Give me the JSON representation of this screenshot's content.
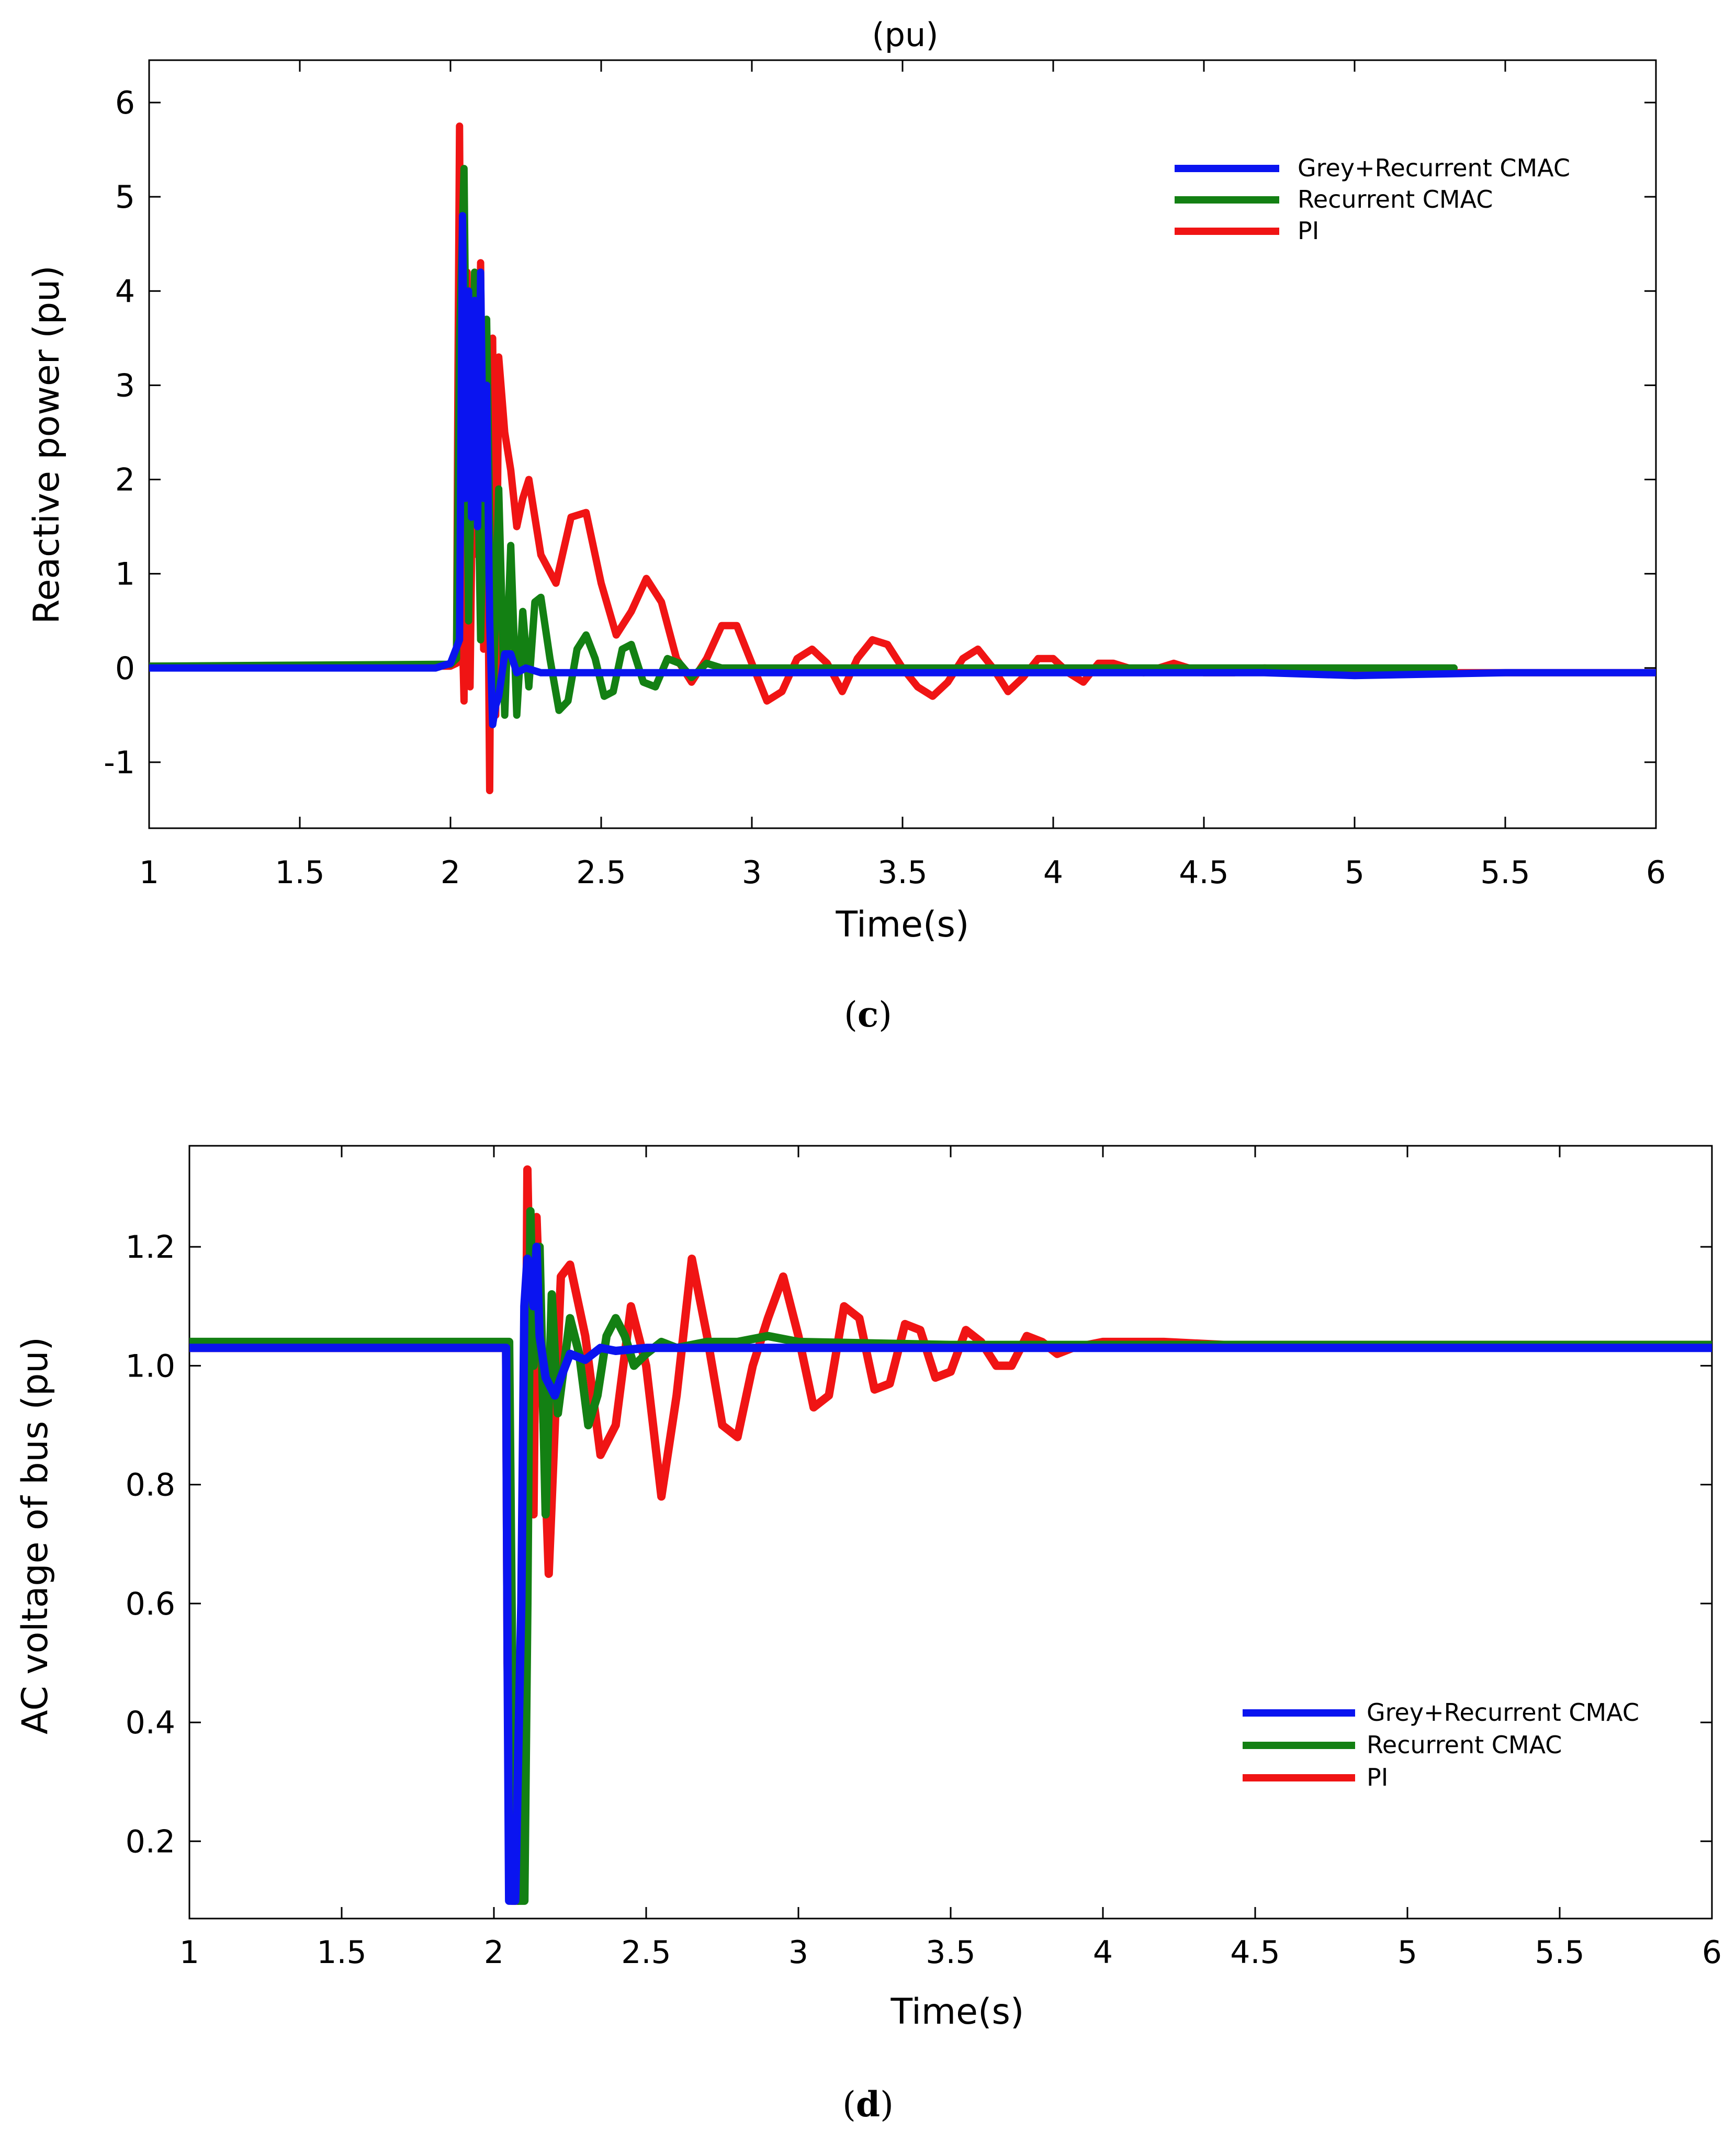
{
  "figure_caption_c": {
    "open": "(",
    "letter": "c",
    "close": ")"
  },
  "figure_caption_d": {
    "open": "(",
    "letter": "d",
    "close": ")"
  },
  "series_colors": {
    "grey_recurrent_cmac": "#0a14f0",
    "recurrent_cmac": "#138013",
    "pi": "#f01414"
  },
  "chart_data": [
    {
      "type": "line",
      "title": "(pu)",
      "xlabel": "Time(s)",
      "ylabel": "Reactive power (pu)",
      "xlim": [
        1,
        6
      ],
      "ylim": [
        -1.7,
        6.45
      ],
      "x_ticks": [
        "1",
        "1.5",
        "2",
        "2.5",
        "3",
        "3.5",
        "4",
        "4.5",
        "5",
        "5.5",
        "6"
      ],
      "y_ticks": [
        "6",
        "5",
        "4",
        "3",
        "2",
        "1",
        "0",
        "-1"
      ],
      "x_tick_values": [
        1,
        1.5,
        2,
        2.5,
        3,
        3.5,
        4,
        4.5,
        5,
        5.5,
        6
      ],
      "y_tick_values": [
        6,
        5,
        4,
        3,
        2,
        1,
        0,
        -1
      ],
      "legend_position": "top-right",
      "legend": [
        "Grey+Recurrent CMAC",
        "Recurrent CMAC",
        "PI"
      ],
      "series": [
        {
          "name": "PI",
          "color": "#f01414",
          "x": [
            1.0,
            1.5,
            2.0,
            2.02,
            2.025,
            2.03,
            2.04,
            2.045,
            2.055,
            2.065,
            2.08,
            2.09,
            2.1,
            2.11,
            2.12,
            2.13,
            2.14,
            2.15,
            2.16,
            2.18,
            2.2,
            2.22,
            2.24,
            2.26,
            2.3,
            2.35,
            2.4,
            2.45,
            2.5,
            2.55,
            2.6,
            2.65,
            2.7,
            2.75,
            2.8,
            2.85,
            2.9,
            2.95,
            3.0,
            3.05,
            3.1,
            3.15,
            3.2,
            3.25,
            3.3,
            3.35,
            3.4,
            3.45,
            3.5,
            3.55,
            3.6,
            3.65,
            3.7,
            3.75,
            3.8,
            3.85,
            3.9,
            3.95,
            4.0,
            4.05,
            4.1,
            4.15,
            4.2,
            4.3,
            4.4,
            4.5,
            4.6,
            4.7,
            5.0,
            5.5,
            6.0
          ],
          "values": [
            0.02,
            0.02,
            0.02,
            0.05,
            3.2,
            5.75,
            0.3,
            -0.35,
            4.2,
            -0.2,
            3.9,
            1.2,
            4.3,
            0.2,
            2.8,
            -1.3,
            3.5,
            -0.5,
            3.3,
            2.5,
            2.1,
            1.5,
            1.8,
            2.0,
            1.2,
            0.9,
            1.6,
            1.65,
            0.9,
            0.35,
            0.6,
            0.95,
            0.7,
            0.1,
            -0.15,
            0.1,
            0.45,
            0.45,
            0.05,
            -0.35,
            -0.25,
            0.1,
            0.2,
            0.05,
            -0.25,
            0.1,
            0.3,
            0.25,
            0.0,
            -0.2,
            -0.3,
            -0.15,
            0.1,
            0.2,
            0.0,
            -0.25,
            -0.1,
            0.1,
            0.1,
            -0.05,
            -0.15,
            0.05,
            0.05,
            -0.05,
            0.05,
            -0.05,
            -0.05,
            0.0,
            -0.05,
            -0.05,
            -0.05
          ]
        },
        {
          "name": "Recurrent CMAC",
          "color": "#138013",
          "x": [
            1.0,
            1.5,
            2.0,
            2.02,
            2.03,
            2.045,
            2.06,
            2.08,
            2.1,
            2.12,
            2.14,
            2.16,
            2.18,
            2.2,
            2.22,
            2.24,
            2.26,
            2.28,
            2.3,
            2.33,
            2.36,
            2.39,
            2.42,
            2.45,
            2.48,
            2.51,
            2.54,
            2.57,
            2.6,
            2.64,
            2.68,
            2.72,
            2.76,
            2.8,
            2.85,
            2.9,
            3.0,
            3.5,
            4.0,
            4.5,
            5.0,
            5.33
          ],
          "values": [
            0.02,
            0.03,
            0.04,
            0.1,
            3.5,
            5.3,
            0.5,
            4.2,
            0.3,
            3.7,
            -0.6,
            1.9,
            -0.5,
            1.3,
            -0.5,
            0.6,
            -0.2,
            0.7,
            0.75,
            0.1,
            -0.45,
            -0.35,
            0.2,
            0.35,
            0.1,
            -0.3,
            -0.25,
            0.2,
            0.25,
            -0.15,
            -0.2,
            0.1,
            0.05,
            -0.1,
            0.05,
            0.0,
            0.0,
            0.0,
            0.0,
            0.0,
            0.0,
            0.0
          ]
        },
        {
          "name": "Grey+Recurrent CMAC",
          "color": "#0a14f0",
          "x": [
            1.0,
            1.5,
            1.95,
            2.0,
            2.03,
            2.04,
            2.05,
            2.06,
            2.07,
            2.08,
            2.09,
            2.1,
            2.11,
            2.12,
            2.13,
            2.14,
            2.15,
            2.16,
            2.18,
            2.2,
            2.22,
            2.25,
            2.3,
            2.4,
            2.5,
            3.0,
            3.5,
            4.0,
            4.5,
            4.7,
            5.0,
            5.5,
            6.0
          ],
          "values": [
            0.0,
            0.0,
            0.0,
            0.05,
            0.3,
            4.8,
            1.8,
            4.0,
            1.6,
            3.9,
            1.5,
            4.2,
            1.8,
            3.0,
            0.5,
            -0.6,
            -0.4,
            -0.3,
            0.15,
            0.15,
            -0.05,
            0.0,
            -0.05,
            -0.05,
            -0.05,
            -0.05,
            -0.05,
            -0.05,
            -0.05,
            -0.05,
            -0.08,
            -0.05,
            -0.05
          ]
        }
      ]
    },
    {
      "type": "line",
      "title": "",
      "xlabel": "Time(s)",
      "ylabel": "AC voltage of bus (pu)",
      "xlim": [
        1,
        6
      ],
      "ylim": [
        0.07,
        1.37
      ],
      "x_ticks": [
        "1",
        "1.5",
        "2",
        "2.5",
        "3",
        "3.5",
        "4",
        "4.5",
        "5",
        "5.5",
        "6"
      ],
      "y_ticks": [
        "1.2",
        "1.0",
        "0.8",
        "0.6",
        "0.4",
        "0.2"
      ],
      "x_tick_values": [
        1,
        1.5,
        2,
        2.5,
        3,
        3.5,
        4,
        4.5,
        5,
        5.5,
        6
      ],
      "y_tick_values": [
        1.2,
        1.0,
        0.8,
        0.6,
        0.4,
        0.2
      ],
      "legend_position": "bottom-right",
      "legend": [
        "Grey+Recurrent CMAC",
        "Recurrent CMAC",
        "PI"
      ],
      "series": [
        {
          "name": "PI",
          "color": "#f01414",
          "x": [
            1.0,
            1.5,
            2.0,
            2.04,
            2.045,
            2.06,
            2.08,
            2.1,
            2.11,
            2.12,
            2.13,
            2.14,
            2.16,
            2.18,
            2.2,
            2.22,
            2.25,
            2.3,
            2.35,
            2.4,
            2.45,
            2.5,
            2.55,
            2.6,
            2.65,
            2.7,
            2.75,
            2.8,
            2.85,
            2.9,
            2.95,
            3.0,
            3.05,
            3.1,
            3.15,
            3.2,
            3.25,
            3.3,
            3.35,
            3.4,
            3.45,
            3.5,
            3.55,
            3.6,
            3.65,
            3.7,
            3.75,
            3.8,
            3.85,
            3.9,
            4.0,
            4.2,
            4.4,
            4.6,
            5.0,
            5.5,
            6.0
          ],
          "values": [
            1.03,
            1.03,
            1.03,
            1.03,
            0.5,
            0.1,
            0.1,
            0.5,
            1.33,
            1.05,
            0.75,
            1.25,
            0.95,
            0.65,
            0.9,
            1.15,
            1.17,
            1.05,
            0.85,
            0.9,
            1.1,
            1.0,
            0.78,
            0.95,
            1.18,
            1.05,
            0.9,
            0.88,
            1.0,
            1.08,
            1.15,
            1.05,
            0.93,
            0.95,
            1.1,
            1.08,
            0.96,
            0.97,
            1.07,
            1.06,
            0.98,
            0.99,
            1.06,
            1.04,
            1.0,
            1.0,
            1.05,
            1.04,
            1.02,
            1.03,
            1.04,
            1.04,
            1.035,
            1.035,
            1.035,
            1.035,
            1.035
          ]
        },
        {
          "name": "Recurrent CMAC",
          "color": "#138013",
          "x": [
            1.0,
            1.5,
            2.0,
            2.05,
            2.06,
            2.08,
            2.1,
            2.11,
            2.12,
            2.13,
            2.15,
            2.17,
            2.19,
            2.21,
            2.23,
            2.25,
            2.28,
            2.31,
            2.34,
            2.37,
            2.4,
            2.43,
            2.46,
            2.5,
            2.55,
            2.6,
            2.7,
            2.8,
            2.9,
            3.0,
            3.5,
            4.0,
            5.0,
            6.0
          ],
          "values": [
            1.04,
            1.04,
            1.04,
            1.04,
            0.5,
            0.1,
            0.1,
            0.6,
            1.26,
            1.0,
            1.2,
            0.75,
            1.12,
            0.92,
            1.0,
            1.08,
            1.02,
            0.9,
            0.95,
            1.05,
            1.08,
            1.05,
            1.0,
            1.02,
            1.04,
            1.03,
            1.04,
            1.04,
            1.05,
            1.04,
            1.035,
            1.035,
            1.035,
            1.035
          ]
        },
        {
          "name": "Grey+Recurrent CMAC",
          "color": "#0a14f0",
          "x": [
            1.0,
            1.5,
            2.0,
            2.04,
            2.045,
            2.05,
            2.07,
            2.09,
            2.1,
            2.11,
            2.12,
            2.13,
            2.14,
            2.15,
            2.17,
            2.2,
            2.22,
            2.25,
            2.3,
            2.35,
            2.4,
            2.5,
            3.0,
            3.5,
            4.0,
            4.5,
            5.0,
            5.5,
            6.0
          ],
          "values": [
            1.03,
            1.03,
            1.03,
            1.03,
            0.5,
            0.1,
            0.1,
            0.6,
            1.1,
            1.18,
            1.17,
            1.1,
            1.2,
            1.05,
            0.98,
            0.95,
            0.98,
            1.02,
            1.01,
            1.03,
            1.025,
            1.03,
            1.03,
            1.03,
            1.03,
            1.03,
            1.03,
            1.03,
            1.03
          ]
        }
      ]
    }
  ]
}
